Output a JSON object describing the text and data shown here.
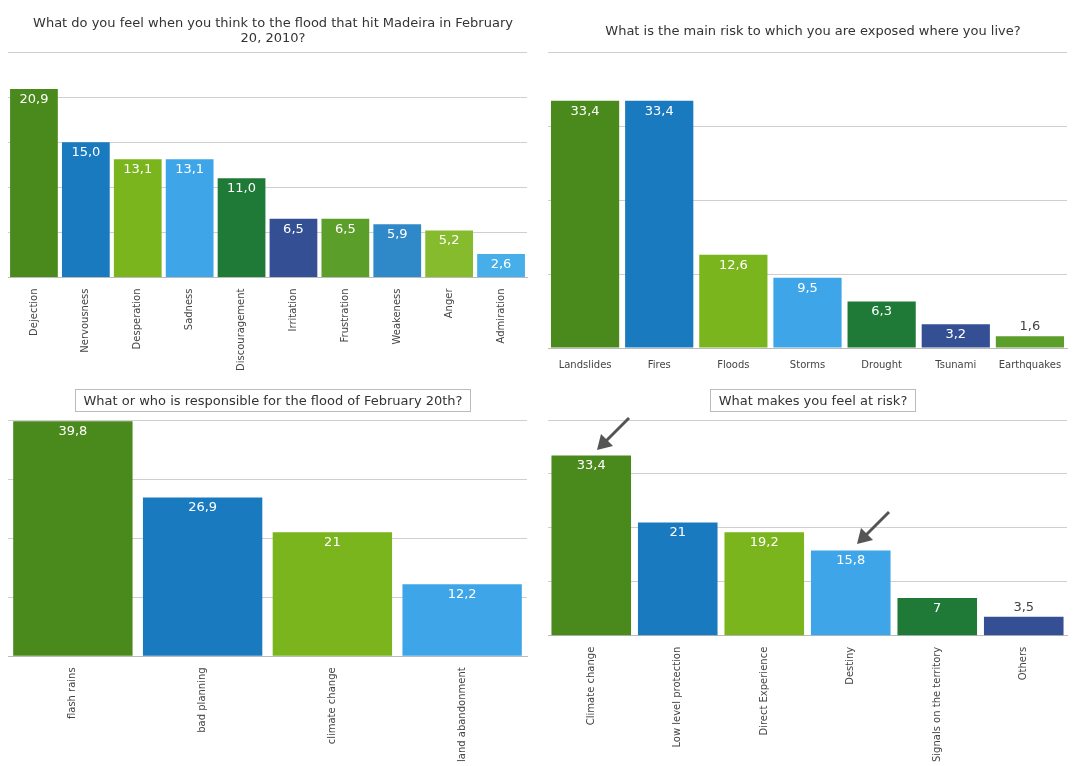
{
  "chart_data": [
    {
      "type": "bar",
      "title": "What do you feel when you think to the flood that hit Madeira in February 20, 2010?",
      "categories": [
        "Dejection",
        "Nervousness",
        "Desperation",
        "Sadness",
        "Discouragement",
        "Irritation",
        "Frustration",
        "Weakeness",
        "Anger",
        "Admiration"
      ],
      "values": [
        20.9,
        15.0,
        13.1,
        13.1,
        11.0,
        6.5,
        6.5,
        5.9,
        5.2,
        2.6
      ],
      "value_labels": [
        "20,9",
        "15,0",
        "13,1",
        "13,1",
        "11,0",
        "6,5",
        "6,5",
        "5,9",
        "5,2",
        "2,6"
      ],
      "colors": [
        "#4a8a1c",
        "#1a7abf",
        "#7ab51d",
        "#3ea6e8",
        "#1e7a36",
        "#344f94",
        "#5c9e2a",
        "#2f88c8",
        "#86bb2e",
        "#46aee8"
      ],
      "grid": "y"
    },
    {
      "type": "bar",
      "title": "What is the main risk to which you are exposed where you live?",
      "categories": [
        "Landslides",
        "Fires",
        "Floods",
        "Storms",
        "Drought",
        "Tsunami",
        "Earthquakes"
      ],
      "values": [
        33.4,
        33.4,
        12.6,
        9.5,
        6.3,
        3.2,
        1.6
      ],
      "value_labels": [
        "33,4",
        "33,4",
        "12,6",
        "9,5",
        "6,3",
        "3,2",
        "1,6"
      ],
      "colors": [
        "#4a8a1c",
        "#1a7abf",
        "#7ab51d",
        "#3ea6e8",
        "#1e7a36",
        "#344f94",
        "#5c9e2a"
      ],
      "grid": "y"
    },
    {
      "type": "bar",
      "title": "What or who is responsible for the flood of February 20th?",
      "categories": [
        "flash rains",
        "bad planning",
        "climate change",
        "land abandonment"
      ],
      "values": [
        39.8,
        26.9,
        21,
        12.2
      ],
      "value_labels": [
        "39,8",
        "26,9",
        "21",
        "12,2"
      ],
      "colors": [
        "#4a8a1c",
        "#1a7abf",
        "#7ab51d",
        "#3ea6e8"
      ],
      "grid": "y"
    },
    {
      "type": "bar",
      "title": "What makes you feel at risk?",
      "categories": [
        "Climate change",
        "Low level protection",
        "Direct Experience",
        "Destiny",
        "Signals on the territory",
        "Others"
      ],
      "values": [
        33.4,
        21,
        19.2,
        15.8,
        7,
        3.5
      ],
      "value_labels": [
        "33,4",
        "21",
        "19,2",
        "15,8",
        "7",
        "3,5"
      ],
      "colors": [
        "#4a8a1c",
        "#1a7abf",
        "#7ab51d",
        "#3ea6e8",
        "#1e7a36",
        "#344f94"
      ],
      "grid": "y"
    }
  ]
}
